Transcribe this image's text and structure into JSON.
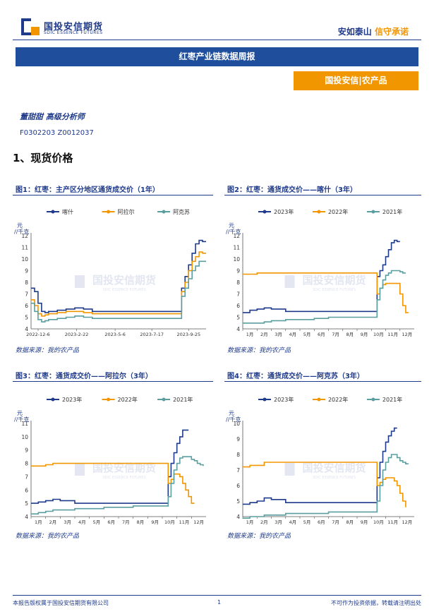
{
  "header": {
    "logo_cn": "国投安信期货",
    "logo_en": "SDIC ESSENCE FUTURES",
    "slogan_main": "安如泰山",
    "slogan_accent": "信守承诺",
    "report_title": "红枣产业链数据周报",
    "dept": "国投安信|农产品"
  },
  "analyst": {
    "name_title": "董甜甜 高级分析师",
    "cert": "F0302203 Z0012037"
  },
  "section_title": "1、现货价格",
  "watermark": {
    "cn": "国投安信期货",
    "en": "SDIC ESSENCE FUTURES"
  },
  "colors": {
    "navy": "#1f3a8a",
    "orange": "#f29600",
    "teal": "#5b9ea0",
    "title_bar": "#1f4e9c"
  },
  "figures": [
    {
      "title": "图1：红枣：主产区分地区通货成交价（1年）",
      "source": "数据来源：我的农产品"
    },
    {
      "title": "图2：红枣：通货成交价——喀什（3年）",
      "source": "数据来源：我的农产品"
    },
    {
      "title": "图3：红枣：通货成交价——阿拉尔（3年）",
      "source": "数据来源：我的农产品"
    },
    {
      "title": "图4：红枣：通货成交价——阿克苏（3年）",
      "source": "数据来源：我的农产品"
    }
  ],
  "footer": {
    "left": "本报告版权属于国投安信期货有限公司",
    "page": "1",
    "right": "不可作为投资依据，转载请注明出处"
  },
  "chart_data": [
    {
      "type": "line",
      "ylabel": "元/千克",
      "ylim": [
        4,
        12
      ],
      "yticks": [
        4,
        5,
        6,
        7,
        8,
        9,
        10,
        11,
        12
      ],
      "x_tick_labels": [
        "2022-12-6",
        "2023-2-22",
        "2023-5-6",
        "2023-7-17",
        "2023-9-25"
      ],
      "x_tick_pos": [
        0,
        0.22,
        0.44,
        0.65,
        0.86
      ],
      "x": [
        0,
        0.02,
        0.04,
        0.06,
        0.08,
        0.1,
        0.15,
        0.2,
        0.25,
        0.3,
        0.35,
        0.4,
        0.5,
        0.6,
        0.7,
        0.8,
        0.85,
        0.86,
        0.88,
        0.9,
        0.92,
        0.94,
        0.96,
        0.98,
        1.0
      ],
      "series": [
        {
          "name": "喀什",
          "color": "#1f3a8a",
          "values": [
            7.5,
            7.2,
            6.2,
            5.5,
            5.4,
            5.5,
            5.6,
            5.7,
            5.8,
            5.7,
            5.5,
            5.5,
            5.5,
            5.5,
            5.5,
            5.5,
            5.5,
            7.5,
            8.5,
            9.5,
            10.5,
            11.3,
            11.6,
            11.5,
            11.5
          ]
        },
        {
          "name": "阿拉尔",
          "color": "#f29600",
          "values": [
            6.5,
            6.0,
            5.3,
            5.1,
            5.2,
            5.3,
            5.4,
            5.5,
            5.5,
            5.4,
            5.3,
            5.3,
            5.3,
            5.3,
            5.3,
            5.3,
            5.3,
            7.2,
            8.0,
            9.0,
            9.8,
            10.2,
            10.6,
            10.5,
            10.5
          ]
        },
        {
          "name": "阿克苏",
          "color": "#5b9ea0",
          "values": [
            6.2,
            5.5,
            4.8,
            4.6,
            4.7,
            4.8,
            4.9,
            5.0,
            5.1,
            5.0,
            4.9,
            4.9,
            4.9,
            4.9,
            4.9,
            4.9,
            4.9,
            6.8,
            7.5,
            8.3,
            9.0,
            9.4,
            9.8,
            9.8,
            9.8
          ]
        }
      ]
    },
    {
      "type": "line",
      "ylabel": "元/千克",
      "ylim": [
        4,
        12
      ],
      "yticks": [
        4,
        5,
        6,
        7,
        8,
        9,
        10,
        11,
        12
      ],
      "x_tick_labels": [
        "1月",
        "2月",
        "3月",
        "4月",
        "5月",
        "6月",
        "7月",
        "8月",
        "9月",
        "10月",
        "11月",
        "12月"
      ],
      "x": [
        0,
        0.5,
        1,
        1.5,
        2,
        3,
        4,
        5,
        6,
        7,
        8,
        9,
        9.2,
        9.4,
        9.6,
        9.8,
        10,
        10.2,
        10.4,
        10.6,
        10.8,
        11,
        11.2,
        11.4,
        11.6,
        11.8
      ],
      "series": [
        {
          "name": "2023年",
          "color": "#1f3a8a",
          "values": [
            5.4,
            5.6,
            5.7,
            5.8,
            5.7,
            5.5,
            5.5,
            5.5,
            5.5,
            5.5,
            5.5,
            5.5,
            5.5,
            8.5,
            9.0,
            9.5,
            10.2,
            10.8,
            11.4,
            11.6,
            11.5,
            11.5,
            null,
            null,
            null,
            null
          ]
        },
        {
          "name": "2022年",
          "color": "#f29600",
          "values": [
            8.7,
            8.7,
            8.8,
            8.8,
            8.8,
            8.8,
            8.8,
            8.8,
            8.8,
            8.8,
            8.8,
            8.8,
            8.8,
            7.0,
            7.5,
            7.8,
            7.9,
            7.9,
            7.9,
            7.9,
            7.9,
            7.0,
            6.0,
            5.4,
            5.4,
            null
          ]
        },
        {
          "name": "2021年",
          "color": "#5b9ea0",
          "values": [
            4.5,
            4.5,
            4.5,
            4.6,
            4.7,
            4.8,
            4.8,
            4.9,
            5.0,
            5.0,
            5.0,
            5.0,
            5.0,
            6.5,
            7.5,
            8.2,
            8.6,
            8.8,
            9.0,
            9.0,
            9.0,
            8.9,
            8.8,
            8.8,
            null,
            null
          ]
        }
      ]
    },
    {
      "type": "line",
      "ylabel": "元/千克",
      "ylim": [
        4,
        11
      ],
      "yticks": [
        4,
        5,
        6,
        7,
        8,
        9,
        10,
        11
      ],
      "x_tick_labels": [
        "1月",
        "2月",
        "3月",
        "4月",
        "5月",
        "6月",
        "7月",
        "8月",
        "9月",
        "10月",
        "11月",
        "12月"
      ],
      "x": [
        0,
        0.5,
        1,
        1.5,
        2,
        3,
        4,
        5,
        6,
        7,
        8,
        9,
        9.2,
        9.4,
        9.6,
        9.8,
        10,
        10.2,
        10.4,
        10.6,
        10.8,
        11,
        11.2,
        11.4,
        11.6,
        11.8
      ],
      "series": [
        {
          "name": "2023年",
          "color": "#1f3a8a",
          "values": [
            5.0,
            5.1,
            5.2,
            5.3,
            5.2,
            5.0,
            5.0,
            5.0,
            5.0,
            5.0,
            5.0,
            5.0,
            5.0,
            7.0,
            8.0,
            8.8,
            9.5,
            10.0,
            10.5,
            10.5,
            10.5,
            null,
            null,
            null,
            null,
            null
          ]
        },
        {
          "name": "2022年",
          "color": "#f29600",
          "values": [
            7.8,
            7.8,
            7.9,
            8.0,
            8.0,
            8.0,
            8.0,
            8.0,
            8.0,
            8.0,
            8.0,
            8.0,
            8.0,
            6.5,
            6.8,
            7.2,
            7.2,
            7.0,
            6.5,
            6.0,
            5.5,
            5.0,
            5.0,
            null,
            null,
            null
          ]
        },
        {
          "name": "2021年",
          "color": "#5b9ea0",
          "values": [
            4.2,
            4.3,
            4.4,
            4.5,
            4.5,
            4.6,
            4.6,
            4.7,
            4.7,
            4.8,
            4.8,
            4.8,
            4.8,
            5.5,
            6.5,
            7.5,
            8.0,
            8.4,
            8.5,
            8.5,
            8.5,
            8.3,
            8.2,
            8.0,
            7.9,
            7.8
          ]
        }
      ]
    },
    {
      "type": "line",
      "ylabel": "元/千克",
      "ylim": [
        4,
        10
      ],
      "yticks": [
        4,
        5,
        6,
        7,
        8,
        9,
        10
      ],
      "x_tick_labels": [
        "1月",
        "2月",
        "3月",
        "4月",
        "5月",
        "6月",
        "7月",
        "8月",
        "9月",
        "10月",
        "11月",
        "12月"
      ],
      "x": [
        0,
        0.5,
        1,
        1.5,
        2,
        3,
        4,
        5,
        6,
        7,
        8,
        9,
        9.2,
        9.4,
        9.6,
        9.8,
        10,
        10.2,
        10.4,
        10.6,
        10.8,
        11,
        11.2,
        11.4,
        11.6,
        11.8
      ],
      "series": [
        {
          "name": "2023年",
          "color": "#1f3a8a",
          "values": [
            4.8,
            4.9,
            5.0,
            5.2,
            5.1,
            4.9,
            4.9,
            4.9,
            4.9,
            4.9,
            4.9,
            4.9,
            4.9,
            6.5,
            7.5,
            8.2,
            8.8,
            9.2,
            9.5,
            9.7,
            9.7,
            null,
            null,
            null,
            null,
            null
          ]
        },
        {
          "name": "2022年",
          "color": "#f29600",
          "values": [
            7.2,
            7.3,
            7.3,
            7.5,
            7.5,
            7.5,
            7.5,
            7.5,
            7.5,
            7.5,
            7.5,
            7.5,
            7.5,
            6.0,
            6.2,
            6.4,
            6.5,
            6.5,
            6.5,
            6.3,
            6.0,
            5.5,
            5.0,
            4.6,
            null,
            null
          ]
        },
        {
          "name": "2021年",
          "color": "#5b9ea0",
          "values": [
            3.9,
            4.0,
            4.0,
            4.1,
            4.1,
            4.2,
            4.2,
            4.2,
            4.3,
            4.3,
            4.3,
            4.3,
            4.3,
            5.0,
            6.0,
            7.0,
            7.5,
            7.8,
            8.0,
            8.0,
            7.8,
            7.6,
            7.5,
            7.4,
            7.4,
            null
          ]
        }
      ]
    }
  ]
}
